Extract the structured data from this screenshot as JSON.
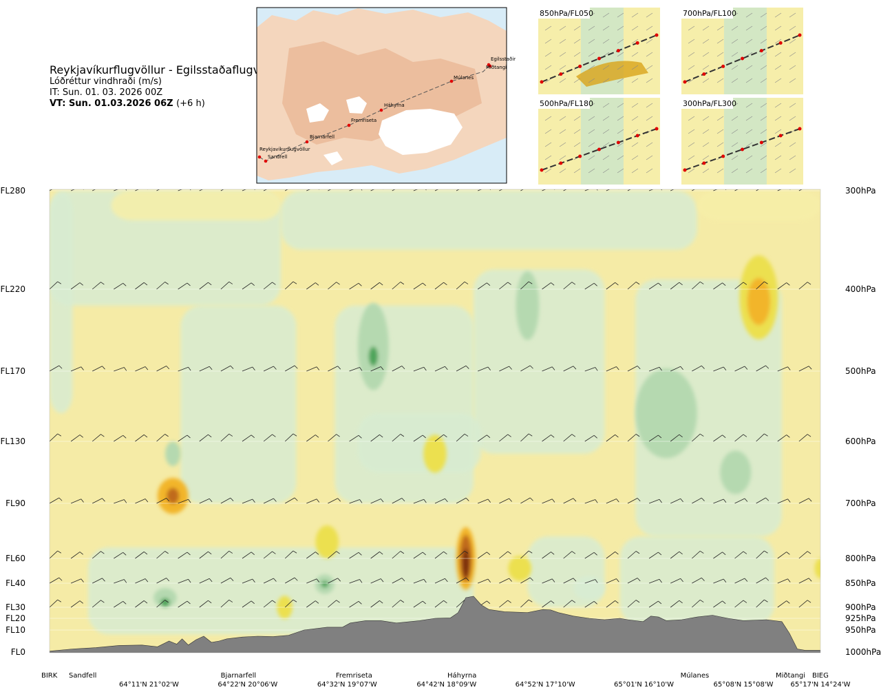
{
  "header": {
    "title": "Reykjavíkurflugvöllur - Egilsstaðaflugvöllur",
    "subtitle": "Lóðréttur vindhraði (m/s)",
    "issue_time": "IT: Sun. 01. 03. 2026 00Z",
    "valid_time": "VT: Sun. 01.03.2026 06Z",
    "lead": "(+6 h)"
  },
  "map": {
    "waypoints": [
      {
        "name": "Reykjavíkurflugvöllur"
      },
      {
        "name": "Sandfell"
      },
      {
        "name": "Bjarnarfell"
      },
      {
        "name": "Fremriseta"
      },
      {
        "name": "Háhyrna"
      },
      {
        "name": "Múlanes"
      },
      {
        "name": "Egilsstaðir"
      },
      {
        "name": "Miðtangi"
      }
    ]
  },
  "panels": [
    {
      "label": "850hPa/FL050"
    },
    {
      "label": "700hPa/FL100"
    },
    {
      "label": "500hPa/FL180"
    },
    {
      "label": "300hPa/FL300"
    }
  ],
  "colors": {
    "strong_up": "#7a2e0b",
    "up3": "#c06a1a",
    "up2": "#f2b52a",
    "up1": "#ece050",
    "weak_up": "#f7efa8",
    "neutral": "#fbf6d5",
    "weak_down": "#d8ecd2",
    "down1": "#b5d9b0",
    "down2": "#8cc48a",
    "down3": "#4ea45a",
    "terrain": "#808080"
  },
  "chart_data": {
    "type": "heatmap",
    "title": "Lóðréttur vindhraði (m/s)",
    "xlabel": "",
    "ylabel": "",
    "left_axis": [
      {
        "label": "FL280",
        "hpa": 300
      },
      {
        "label": "FL220",
        "hpa": 400
      },
      {
        "label": "FL170",
        "hpa": 500
      },
      {
        "label": "FL130",
        "hpa": 600
      },
      {
        "label": "FL90",
        "hpa": 700
      },
      {
        "label": "FL60",
        "hpa": 800
      },
      {
        "label": "FL40",
        "hpa": 850
      },
      {
        "label": "FL30",
        "hpa": 900
      },
      {
        "label": "FL20",
        "hpa": 925
      },
      {
        "label": "FL10",
        "hpa": 950
      },
      {
        "label": "FL0",
        "hpa": 1000
      }
    ],
    "right_axis": [
      {
        "label": "300hPa",
        "hpa": 300
      },
      {
        "label": "400hPa",
        "hpa": 400
      },
      {
        "label": "500hPa",
        "hpa": 500
      },
      {
        "label": "600hPa",
        "hpa": 600
      },
      {
        "label": "700hPa",
        "hpa": 700
      },
      {
        "label": "800hPa",
        "hpa": 800
      },
      {
        "label": "850hPa",
        "hpa": 850
      },
      {
        "label": "900hPa",
        "hpa": 900
      },
      {
        "label": "925hPa",
        "hpa": 925
      },
      {
        "label": "950hPa",
        "hpa": 950
      },
      {
        "label": "1000hPa",
        "hpa": 1000
      }
    ],
    "waypoint_labels": [
      {
        "label": "BIRK",
        "d": 0.0
      },
      {
        "label": "Sandfell",
        "d": 0.045
      },
      {
        "label": "Bjarnarfell",
        "d": 0.245
      },
      {
        "label": "Fremriseta",
        "d": 0.395
      },
      {
        "label": "Háhyrna",
        "d": 0.535
      },
      {
        "label": "Múlanes",
        "d": 0.837
      },
      {
        "label": "Miðtangi",
        "d": 0.963
      },
      {
        "label": "BIEG",
        "d": 1.0
      }
    ],
    "coord_labels": [
      {
        "label": "64°11'N 21°02'W",
        "d": 0.129
      },
      {
        "label": "64°22'N 20°06'W",
        "d": 0.257
      },
      {
        "label": "64°32'N 19°07'W",
        "d": 0.386
      },
      {
        "label": "64°42'N 18°09'W",
        "d": 0.515
      },
      {
        "label": "64°52'N 17°10'W",
        "d": 0.643
      },
      {
        "label": "65°01'N 16°10'W",
        "d": 0.771
      },
      {
        "label": "65°08'N 15°08'W",
        "d": 0.9
      },
      {
        "label": "65°17'N 14°24'W",
        "d": 1.0
      }
    ],
    "terrain_profile_hpa": [
      [
        0.0,
        998
      ],
      [
        0.03,
        993
      ],
      [
        0.06,
        990
      ],
      [
        0.09,
        985
      ],
      [
        0.12,
        984
      ],
      [
        0.14,
        988
      ],
      [
        0.155,
        975
      ],
      [
        0.165,
        982
      ],
      [
        0.172,
        970
      ],
      [
        0.18,
        984
      ],
      [
        0.19,
        972
      ],
      [
        0.2,
        964
      ],
      [
        0.21,
        978
      ],
      [
        0.22,
        975
      ],
      [
        0.23,
        970
      ],
      [
        0.25,
        966
      ],
      [
        0.27,
        964
      ],
      [
        0.29,
        965
      ],
      [
        0.31,
        962
      ],
      [
        0.33,
        950
      ],
      [
        0.36,
        944
      ],
      [
        0.38,
        944
      ],
      [
        0.39,
        935
      ],
      [
        0.41,
        930
      ],
      [
        0.43,
        930
      ],
      [
        0.45,
        935
      ],
      [
        0.48,
        930
      ],
      [
        0.5,
        925
      ],
      [
        0.52,
        924
      ],
      [
        0.53,
        912
      ],
      [
        0.54,
        880
      ],
      [
        0.55,
        877
      ],
      [
        0.56,
        895
      ],
      [
        0.57,
        905
      ],
      [
        0.59,
        910
      ],
      [
        0.62,
        912
      ],
      [
        0.64,
        905
      ],
      [
        0.65,
        906
      ],
      [
        0.66,
        912
      ],
      [
        0.68,
        920
      ],
      [
        0.7,
        925
      ],
      [
        0.72,
        928
      ],
      [
        0.74,
        925
      ],
      [
        0.75,
        928
      ],
      [
        0.77,
        932
      ],
      [
        0.78,
        920
      ],
      [
        0.79,
        922
      ],
      [
        0.8,
        930
      ],
      [
        0.82,
        928
      ],
      [
        0.84,
        922
      ],
      [
        0.86,
        918
      ],
      [
        0.88,
        925
      ],
      [
        0.9,
        930
      ],
      [
        0.93,
        928
      ],
      [
        0.95,
        932
      ],
      [
        0.96,
        958
      ],
      [
        0.97,
        993
      ],
      [
        0.98,
        996
      ],
      [
        1.0,
        996
      ]
    ],
    "blobs": [
      {
        "d": 0.16,
        "hpa": 688,
        "w": 0.04,
        "h": 60,
        "level": 2
      },
      {
        "d": 0.16,
        "hpa": 688,
        "w": 0.016,
        "h": 26,
        "level": 3
      },
      {
        "d": 0.54,
        "hpa": 800,
        "w": 0.025,
        "h": 120,
        "level": 2
      },
      {
        "d": 0.54,
        "hpa": 800,
        "w": 0.016,
        "h": 90,
        "level": 3
      },
      {
        "d": 0.54,
        "hpa": 810,
        "w": 0.009,
        "h": 58,
        "level": 4
      },
      {
        "d": 0.92,
        "hpa": 410,
        "w": 0.05,
        "h": 95,
        "level": 1
      },
      {
        "d": 0.92,
        "hpa": 415,
        "w": 0.03,
        "h": 55,
        "level": 2
      },
      {
        "d": 0.42,
        "hpa": 470,
        "w": 0.04,
        "h": 110,
        "level": -2
      },
      {
        "d": 0.42,
        "hpa": 482,
        "w": 0.012,
        "h": 24,
        "level": -3
      },
      {
        "d": 0.62,
        "hpa": 420,
        "w": 0.03,
        "h": 80,
        "level": -2
      },
      {
        "d": 0.8,
        "hpa": 560,
        "w": 0.08,
        "h": 130,
        "level": -2
      },
      {
        "d": 0.89,
        "hpa": 650,
        "w": 0.04,
        "h": 70,
        "level": -2
      },
      {
        "d": 0.15,
        "hpa": 880,
        "w": 0.03,
        "h": 40,
        "level": -2
      },
      {
        "d": 0.15,
        "hpa": 890,
        "w": 0.012,
        "h": 18,
        "level": -3
      },
      {
        "d": 0.357,
        "hpa": 852,
        "w": 0.025,
        "h": 40,
        "level": -2
      },
      {
        "d": 0.357,
        "hpa": 852,
        "w": 0.01,
        "h": 14,
        "level": -3
      },
      {
        "d": 0.36,
        "hpa": 770,
        "w": 0.03,
        "h": 60,
        "level": 1
      },
      {
        "d": 0.5,
        "hpa": 620,
        "w": 0.03,
        "h": 60,
        "level": 1
      },
      {
        "d": 0.305,
        "hpa": 900,
        "w": 0.02,
        "h": 50,
        "level": 1
      },
      {
        "d": 0.16,
        "hpa": 620,
        "w": 0.02,
        "h": 40,
        "level": -2
      },
      {
        "d": 0.61,
        "hpa": 820,
        "w": 0.03,
        "h": 50,
        "level": 1
      },
      {
        "d": 0.7,
        "hpa": 860,
        "w": 0.04,
        "h": 50,
        "level": -1
      },
      {
        "d": 1.0,
        "hpa": 820,
        "w": 0.015,
        "h": 40,
        "level": 1
      }
    ]
  }
}
